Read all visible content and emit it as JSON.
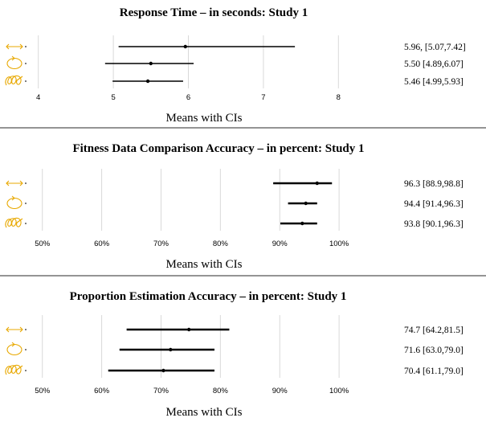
{
  "chart_data": [
    {
      "type": "forest",
      "title": "Response Time – in seconds: Study 1",
      "xlabel": "Means with CIs",
      "xlim": [
        3.5,
        8.8
      ],
      "ticks": [
        "4",
        "5",
        "6",
        "7",
        "8"
      ],
      "tick_values": [
        4,
        5,
        6,
        7,
        8
      ],
      "conditions": [
        "line",
        "circle",
        "spiral"
      ],
      "mean": [
        5.96,
        5.5,
        5.46
      ],
      "low": [
        5.07,
        4.89,
        4.99
      ],
      "high": [
        7.42,
        6.07,
        5.93
      ],
      "labels": [
        "5.96, [5.07,7.42]",
        "5.50 [4.89,6.07]",
        "5.46 [4.99,5.93]"
      ]
    },
    {
      "type": "forest",
      "title": "Fitness Data Comparison Accuracy – in percent: Study 1",
      "xlabel": "Means with CIs",
      "xlim": [
        43,
        110
      ],
      "ticks": [
        "50%",
        "60%",
        "70%",
        "80%",
        "90%",
        "100%"
      ],
      "tick_values": [
        50,
        60,
        70,
        80,
        90,
        100
      ],
      "conditions": [
        "line",
        "circle",
        "spiral"
      ],
      "mean": [
        96.3,
        94.4,
        93.8
      ],
      "low": [
        88.9,
        91.4,
        90.1
      ],
      "high": [
        98.8,
        96.3,
        96.3
      ],
      "labels": [
        "96.3 [88.9,98.8]",
        "94.4 [91.4,96.3]",
        "93.8 [90.1,96.3]"
      ]
    },
    {
      "type": "forest",
      "title": "Proportion Estimation Accuracy – in percent: Study 1",
      "xlabel": "Means with CIs",
      "xlim": [
        43,
        110
      ],
      "ticks": [
        "50%",
        "60%",
        "70%",
        "80%",
        "90%",
        "100%"
      ],
      "tick_values": [
        50,
        60,
        70,
        80,
        90,
        100
      ],
      "conditions": [
        "line",
        "circle",
        "spiral"
      ],
      "mean": [
        74.7,
        71.6,
        70.4
      ],
      "low": [
        64.2,
        63.0,
        61.1
      ],
      "high": [
        81.5,
        79.0,
        79.0
      ],
      "labels": [
        "74.7 [64.2,81.5]",
        "71.6 [63.0,79.0]",
        "70.4 [61.1,79.0]"
      ]
    }
  ],
  "colors": {
    "glyph": "#e8a800",
    "bar": "#000000",
    "grid": "#d9d9d9"
  },
  "icons": [
    "line-arrow-icon",
    "circle-arrow-icon",
    "spiral-icon"
  ]
}
